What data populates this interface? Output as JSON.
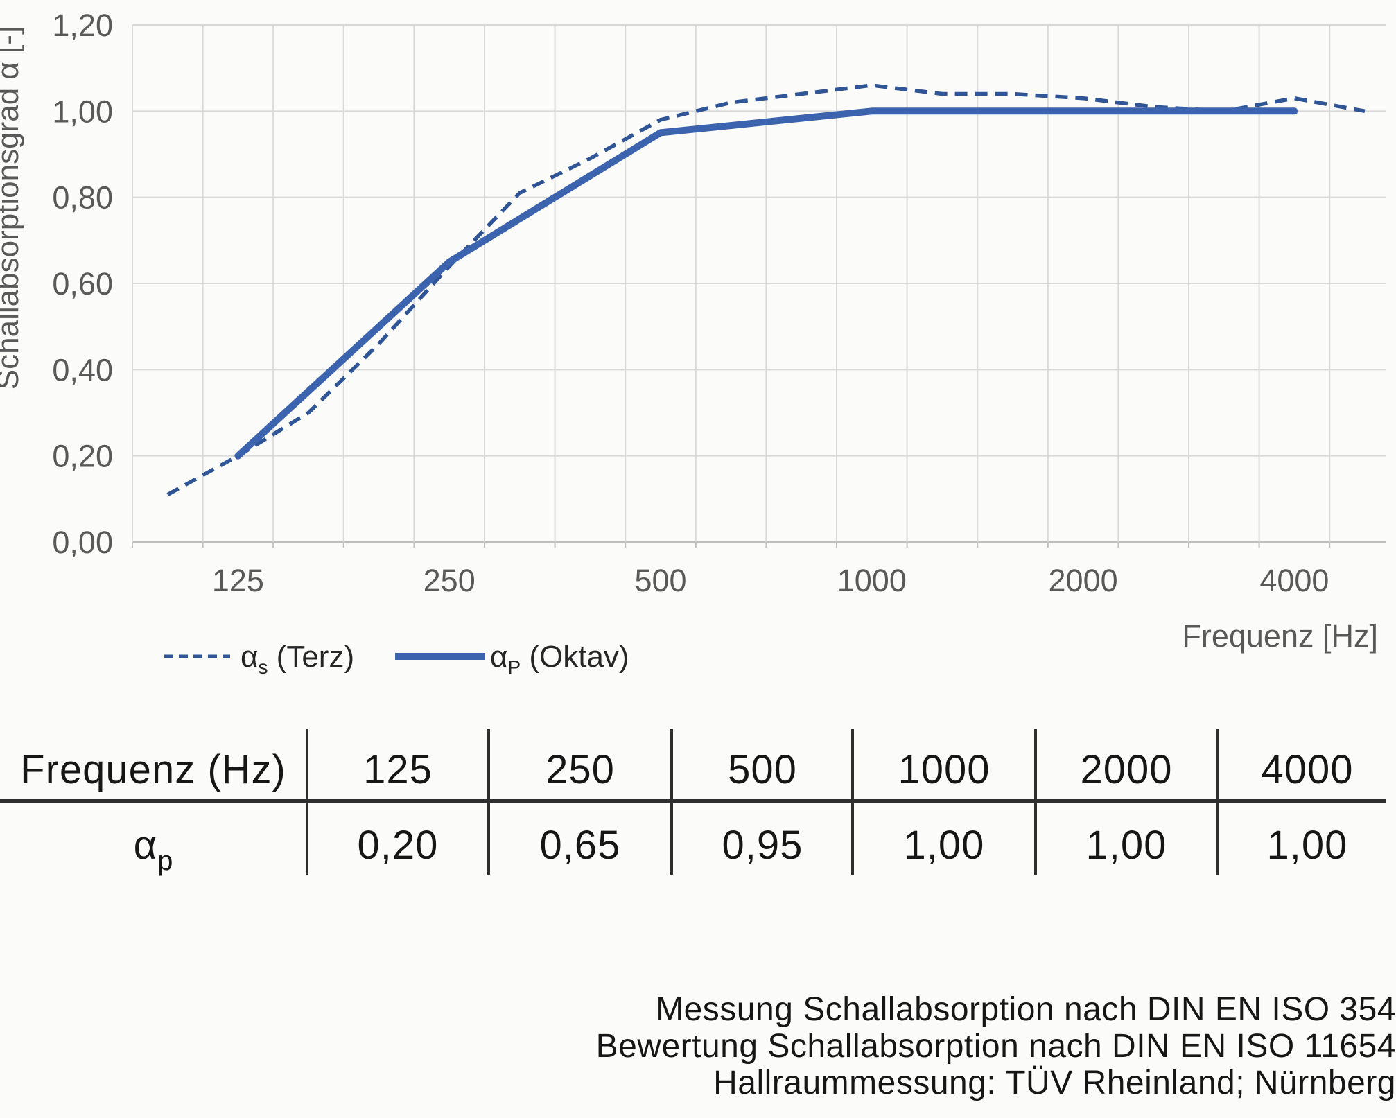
{
  "chart_data": {
    "type": "line",
    "title": "",
    "xlabel": "Frequenz [Hz]",
    "ylabel": "Schallabsorptionsgrad α [-]",
    "x_categories": [
      100,
      125,
      160,
      200,
      250,
      315,
      400,
      500,
      630,
      800,
      1000,
      1250,
      1600,
      2000,
      2500,
      3150,
      4000,
      5000
    ],
    "x_tick_labels": [
      "125",
      "250",
      "500",
      "1000",
      "2000",
      "4000"
    ],
    "x_tick_category_indexes": [
      1,
      4,
      7,
      10,
      13,
      16
    ],
    "y_tick_labels": [
      "0,00",
      "0,20",
      "0,40",
      "0,60",
      "0,80",
      "1,00",
      "1,20"
    ],
    "y_tick_values": [
      0,
      0.2,
      0.4,
      0.6,
      0.8,
      1.0,
      1.2
    ],
    "ylim": [
      0,
      1.2
    ],
    "grid": true,
    "legend_position": "bottom-left",
    "series": [
      {
        "name": "αs (Terz)",
        "symbol": "α",
        "sub": "s",
        "suffix": " (Terz)",
        "style": "dashed",
        "color": "#2F5597",
        "x": [
          100,
          125,
          160,
          200,
          250,
          315,
          400,
          500,
          630,
          800,
          1000,
          1250,
          1600,
          2000,
          2500,
          3150,
          4000,
          5000
        ],
        "values": [
          0.11,
          0.2,
          0.3,
          0.46,
          0.64,
          0.81,
          0.89,
          0.98,
          1.02,
          1.04,
          1.06,
          1.04,
          1.04,
          1.03,
          1.01,
          1.0,
          1.03,
          1.0
        ]
      },
      {
        "name": "αP (Oktav)",
        "symbol": "α",
        "sub": "P",
        "suffix": " (Oktav)",
        "style": "solid",
        "color": "#3C64AE",
        "x": [
          125,
          250,
          500,
          1000,
          2000,
          4000
        ],
        "values": [
          0.2,
          0.65,
          0.95,
          1.0,
          1.0,
          1.0
        ]
      }
    ]
  },
  "table": {
    "header_label": "Frequenz (Hz)",
    "row_symbol": "α",
    "row_sub": "p",
    "columns": [
      "125",
      "250",
      "500",
      "1000",
      "2000",
      "4000"
    ],
    "values": [
      "0,20",
      "0,65",
      "0,95",
      "1,00",
      "1,00",
      "1,00"
    ]
  },
  "footer": {
    "line1": "Messung Schallabsorption nach DIN EN ISO 354",
    "line2": "Bewertung Schallabsorption nach DIN EN ISO 11654",
    "line3": "Hallraummessung: TÜV Rheinland; Nürnberg"
  },
  "colors": {
    "grid": "#D9D9D9",
    "axis_line": "#BFBFBF",
    "tick_text": "#595959",
    "legend_text": "#262626",
    "table_text": "#161616",
    "divider": "#2E2E2E",
    "series_terz": "#2F5597",
    "series_oktav": "#3C64AE",
    "background": "#FBFBFA"
  }
}
